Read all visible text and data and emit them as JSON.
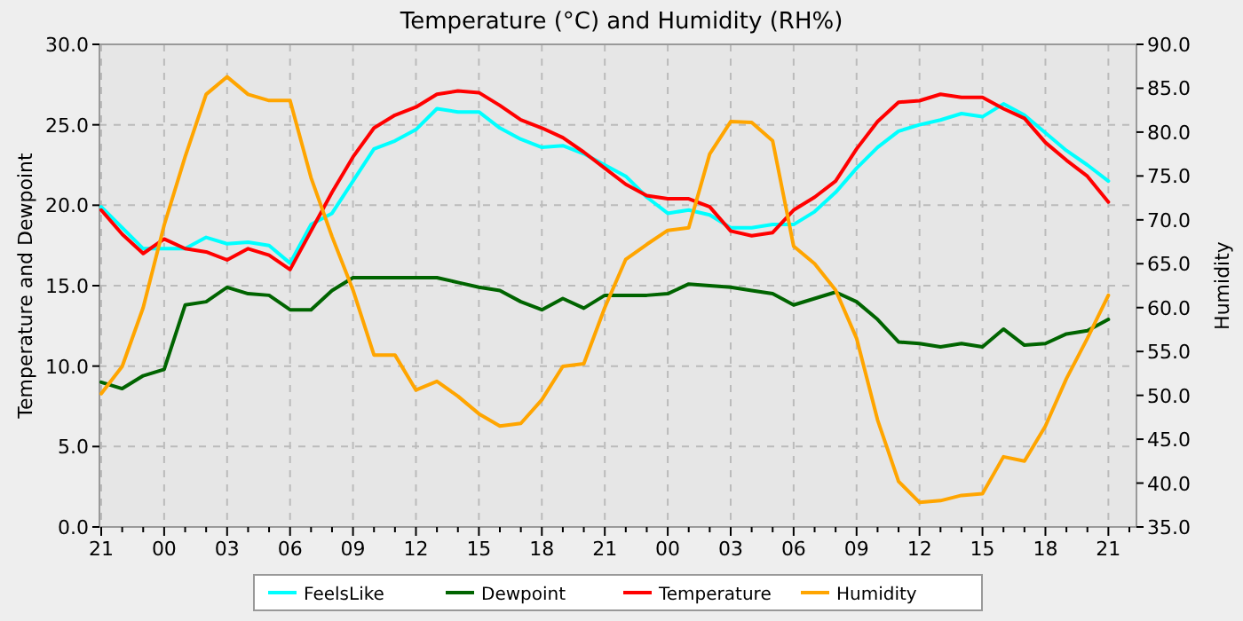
{
  "chart_data": {
    "type": "line",
    "title": "Temperature (°C) and Humidity (RH%)",
    "ylabel": "Temperature and Dewpoint",
    "y2label": "Humidity",
    "categories": [
      "21",
      null,
      null,
      "00",
      null,
      null,
      "03",
      null,
      null,
      "06",
      null,
      null,
      "09",
      null,
      null,
      "12",
      null,
      null,
      "15",
      null,
      null,
      "18",
      null,
      null,
      "21",
      null,
      null,
      "00",
      null,
      null,
      "03",
      null,
      null,
      "06",
      null,
      null,
      "09",
      null,
      null,
      "12",
      null,
      null,
      "15",
      null,
      null,
      "18",
      null,
      null,
      "21",
      null
    ],
    "ylim": [
      0,
      30
    ],
    "yticks": [
      {
        "value": 0,
        "label": "0.0"
      },
      {
        "value": 5,
        "label": "5.0"
      },
      {
        "value": 10,
        "label": "10.0"
      },
      {
        "value": 15,
        "label": "15.0"
      },
      {
        "value": 20,
        "label": "20.0"
      },
      {
        "value": 25,
        "label": "25.0"
      },
      {
        "value": 30,
        "label": "30.0"
      }
    ],
    "y2lim": [
      35,
      90
    ],
    "y2ticks": [
      {
        "value": 35,
        "label": "35.0"
      },
      {
        "value": 40,
        "label": "40.0"
      },
      {
        "value": 45,
        "label": "45.0"
      },
      {
        "value": 50,
        "label": "50.0"
      },
      {
        "value": 55,
        "label": "55.0"
      },
      {
        "value": 60,
        "label": "60.0"
      },
      {
        "value": 65,
        "label": "65.0"
      },
      {
        "value": 70,
        "label": "70.0"
      },
      {
        "value": 75,
        "label": "75.0"
      },
      {
        "value": 80,
        "label": "80.0"
      },
      {
        "value": 85,
        "label": "85.0"
      },
      {
        "value": 90,
        "label": "90.0"
      }
    ],
    "grid": true,
    "legend": "bottom",
    "marker": "none",
    "line_style": "solid",
    "series": [
      {
        "name": "FeelsLike",
        "color": "#00ffff",
        "values": [
          19.9,
          18.6,
          17.3,
          17.3,
          17.3,
          18.0,
          17.6,
          17.7,
          17.5,
          16.4,
          18.8,
          19.5,
          21.5,
          23.5,
          24.0,
          24.7,
          26.0,
          25.8,
          25.8,
          24.8,
          24.1,
          23.6,
          23.7,
          23.2,
          22.5,
          21.8,
          20.5,
          19.5,
          19.7,
          19.4,
          18.6,
          18.6,
          18.8,
          18.8,
          19.6,
          20.8,
          22.3,
          23.6,
          24.6,
          25.0,
          25.3,
          25.7,
          25.5,
          26.3,
          25.6,
          24.5,
          23.4,
          22.5,
          21.5,
          null
        ]
      },
      {
        "name": "Dewpoint",
        "color": "#006400",
        "values": [
          9.0,
          8.6,
          9.4,
          9.8,
          13.8,
          14.0,
          14.9,
          14.5,
          14.4,
          13.5,
          13.5,
          14.7,
          15.5,
          15.5,
          15.5,
          15.5,
          15.5,
          15.2,
          14.9,
          14.7,
          14.0,
          13.5,
          14.2,
          13.6,
          14.4,
          14.4,
          14.4,
          14.5,
          15.1,
          15.0,
          14.9,
          14.7,
          14.5,
          13.8,
          14.2,
          14.6,
          14.0,
          12.9,
          11.5,
          11.4,
          11.2,
          11.4,
          11.2,
          12.3,
          11.3,
          11.4,
          12.0,
          12.2,
          12.9,
          null
        ]
      },
      {
        "name": "Temperature",
        "color": "#ff0000",
        "values": [
          19.7,
          18.2,
          17.0,
          17.9,
          17.3,
          17.1,
          16.6,
          17.3,
          16.9,
          16.0,
          18.4,
          20.8,
          23.0,
          24.8,
          25.6,
          26.1,
          26.9,
          27.1,
          27.0,
          26.2,
          25.3,
          24.8,
          24.2,
          23.3,
          22.3,
          21.3,
          20.6,
          20.4,
          20.4,
          19.9,
          18.4,
          18.1,
          18.3,
          19.7,
          20.5,
          21.5,
          23.5,
          25.2,
          26.4,
          26.5,
          26.9,
          26.7,
          26.7,
          26.0,
          25.4,
          23.9,
          22.8,
          21.8,
          20.2,
          null
        ]
      },
      {
        "name": "Humidity",
        "color": "#ffa500",
        "axis": "y2",
        "values": [
          50.2,
          53.3,
          60.0,
          69.4,
          77.2,
          84.3,
          86.3,
          84.3,
          83.6,
          83.6,
          74.8,
          68.1,
          62.0,
          54.6,
          54.6,
          50.6,
          51.6,
          49.9,
          47.9,
          46.5,
          46.8,
          49.5,
          53.3,
          53.6,
          60.0,
          65.5,
          67.2,
          68.8,
          69.1,
          77.5,
          81.2,
          81.1,
          79.0,
          67.0,
          65.0,
          62.0,
          56.5,
          47.2,
          40.2,
          37.8,
          38.0,
          38.6,
          38.8,
          43.0,
          42.5,
          46.5,
          51.9,
          56.5,
          61.4,
          null
        ]
      }
    ]
  }
}
